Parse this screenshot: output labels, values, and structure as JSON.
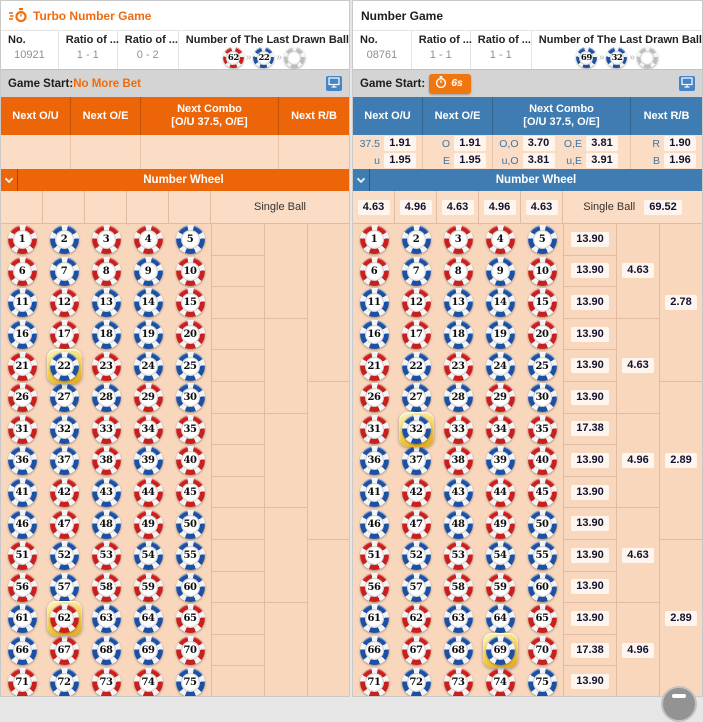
{
  "colors": {
    "turbo_accent": "#f06a10",
    "blue_header": "#3e7cb2",
    "orange_header": "#ec6509",
    "red_ball": "#c8201c",
    "blue_ball": "#1d50a2",
    "highlight": "#f3cf56",
    "odds_label": "#3f77a6",
    "odds_value_text": "#12122e"
  },
  "ball_rows": [
    "RBRRB",
    "RBRBR",
    "BRBBR",
    "BRBBR",
    "RBRBB",
    "RBBRB",
    "RBRRR",
    "BBRBR",
    "BRBRR",
    "BRBRB",
    "RBRBB",
    "RBRRB",
    "BRBBR",
    "BRBBR",
    "RBRRB"
  ],
  "panels": [
    {
      "id": "turbo-number-game",
      "theme": "orange",
      "title": "Turbo Number Game",
      "title_icon": "stopwatch-icon",
      "info": {
        "columns": [
          {
            "label": "No.",
            "value": "10921"
          },
          {
            "label": "Ratio of ...",
            "value": "1 - 1"
          },
          {
            "label": "Ratio of ...",
            "value": "0 - 2"
          }
        ],
        "last_drawn": {
          "label": "Number of The Last Drawn Ball",
          "balls": [
            {
              "num": "62",
              "color": "R"
            },
            {
              "num": "22",
              "color": "B"
            },
            {
              "num": "",
              "color": "E"
            }
          ]
        }
      },
      "game_start": {
        "label": "Game Start:",
        "status": "No More Bet",
        "countdown": ""
      },
      "odds_header": {
        "ou": "Next O/U",
        "oe": "Next O/E",
        "combo_line1": "Next Combo",
        "combo_line2": "[O/U 37.5, O/E]",
        "rb": "Next R/B"
      },
      "odds": {
        "ou": [],
        "oe": [],
        "combo": [],
        "rb": []
      },
      "wheel": {
        "bar_title": "Number Wheel",
        "col_odds": [
          "",
          "",
          "",
          "",
          ""
        ],
        "single_ball_label": "Single Ball",
        "single_ball_odds": "",
        "row_odds": [
          "",
          "",
          "",
          "",
          "",
          "",
          "",
          "",
          "",
          "",
          "",
          "",
          "",
          "",
          ""
        ],
        "group3_odds": [
          "",
          "",
          "",
          "",
          ""
        ],
        "group5_odds": [
          "",
          "",
          ""
        ],
        "highlighted": [
          22,
          62
        ]
      }
    },
    {
      "id": "number-game",
      "theme": "blue",
      "title": "Number Game",
      "title_icon": "",
      "info": {
        "columns": [
          {
            "label": "No.",
            "value": "08761"
          },
          {
            "label": "Ratio of ...",
            "value": "1 - 1"
          },
          {
            "label": "Ratio of ...",
            "value": "1 - 1"
          }
        ],
        "last_drawn": {
          "label": "Number of The Last Drawn Ball",
          "balls": [
            {
              "num": "69",
              "color": "B"
            },
            {
              "num": "32",
              "color": "B"
            },
            {
              "num": "",
              "color": "E"
            }
          ]
        }
      },
      "game_start": {
        "label": "Game Start:",
        "status": "",
        "countdown": "6s"
      },
      "odds_header": {
        "ou": "Next O/U",
        "oe": "Next O/E",
        "combo_line1": "Next Combo",
        "combo_line2": "[O/U 37.5, O/E]",
        "rb": "Next R/B"
      },
      "odds": {
        "ou": [
          {
            "label": "37.5",
            "value": "1.91"
          },
          {
            "label": "u",
            "value": "1.95"
          }
        ],
        "oe": [
          {
            "label": "O",
            "value": "1.91"
          },
          {
            "label": "E",
            "value": "1.95"
          }
        ],
        "combo": [
          {
            "label": "O,O",
            "value": "3.70"
          },
          {
            "label": "O,E",
            "value": "3.81"
          },
          {
            "label": "u,O",
            "value": "3.81"
          },
          {
            "label": "u,E",
            "value": "3.91"
          }
        ],
        "rb": [
          {
            "label": "R",
            "value": "1.90"
          },
          {
            "label": "B",
            "value": "1.96"
          }
        ]
      },
      "wheel": {
        "bar_title": "Number Wheel",
        "col_odds": [
          "4.63",
          "4.96",
          "4.63",
          "4.96",
          "4.63"
        ],
        "single_ball_label": "Single Ball",
        "single_ball_odds": "69.52",
        "row_odds": [
          "13.90",
          "13.90",
          "13.90",
          "13.90",
          "13.90",
          "13.90",
          "17.38",
          "13.90",
          "13.90",
          "13.90",
          "13.90",
          "13.90",
          "13.90",
          "17.38",
          "13.90"
        ],
        "group3_odds": [
          "4.63",
          "4.63",
          "4.96",
          "4.63",
          "4.96"
        ],
        "group5_odds": [
          "2.78",
          "2.89",
          "2.89"
        ],
        "highlighted": [
          32,
          69
        ]
      }
    }
  ],
  "fab_icon": "minimize-icon"
}
